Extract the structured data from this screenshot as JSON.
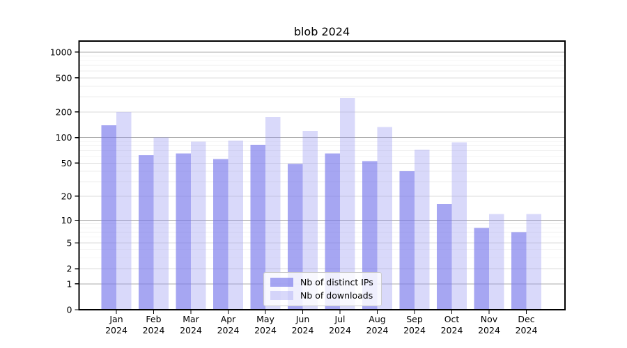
{
  "chart_data": {
    "type": "bar",
    "title": "blob 2024",
    "categories": [
      "Jan",
      "Feb",
      "Mar",
      "Apr",
      "May",
      "Jun",
      "Jul",
      "Aug",
      "Sep",
      "Oct",
      "Nov",
      "Dec"
    ],
    "category_year": "2024",
    "series": [
      {
        "name": "Nb of distinct IPs",
        "color": "rgba(120,120,235,0.66)",
        "values": [
          140,
          62,
          65,
          56,
          82,
          49,
          65,
          53,
          40,
          16,
          8,
          7
        ]
      },
      {
        "name": "Nb of downloads",
        "color": "rgba(150,150,240,0.36)",
        "values": [
          200,
          100,
          90,
          92,
          175,
          120,
          290,
          133,
          72,
          88,
          12,
          12
        ]
      }
    ],
    "xlabel": "",
    "ylabel": "",
    "y_scale": "log10(1+v) with 0 at baseline",
    "y_ticks": [
      0,
      1,
      2,
      5,
      10,
      20,
      50,
      100,
      200,
      500,
      1000
    ],
    "y_minor_ticks": [
      3,
      4,
      6,
      7,
      8,
      9,
      30,
      40,
      60,
      70,
      80,
      90,
      300,
      400,
      600,
      700,
      800,
      900
    ],
    "ylim": [
      0,
      1350
    ],
    "grid": true,
    "legend": {
      "position": "lower center inside plot",
      "entries": [
        "Nb of distinct IPs",
        "Nb of downloads"
      ]
    }
  },
  "colors": {
    "axis": "#000000",
    "grid_major": "#ababab",
    "grid_mid": "#dbdbdb",
    "grid_minor": "#eeeeee",
    "legend_border": "#cccccc",
    "legend_bg": "rgba(255,255,255,0.82)",
    "background": "#ffffff"
  }
}
